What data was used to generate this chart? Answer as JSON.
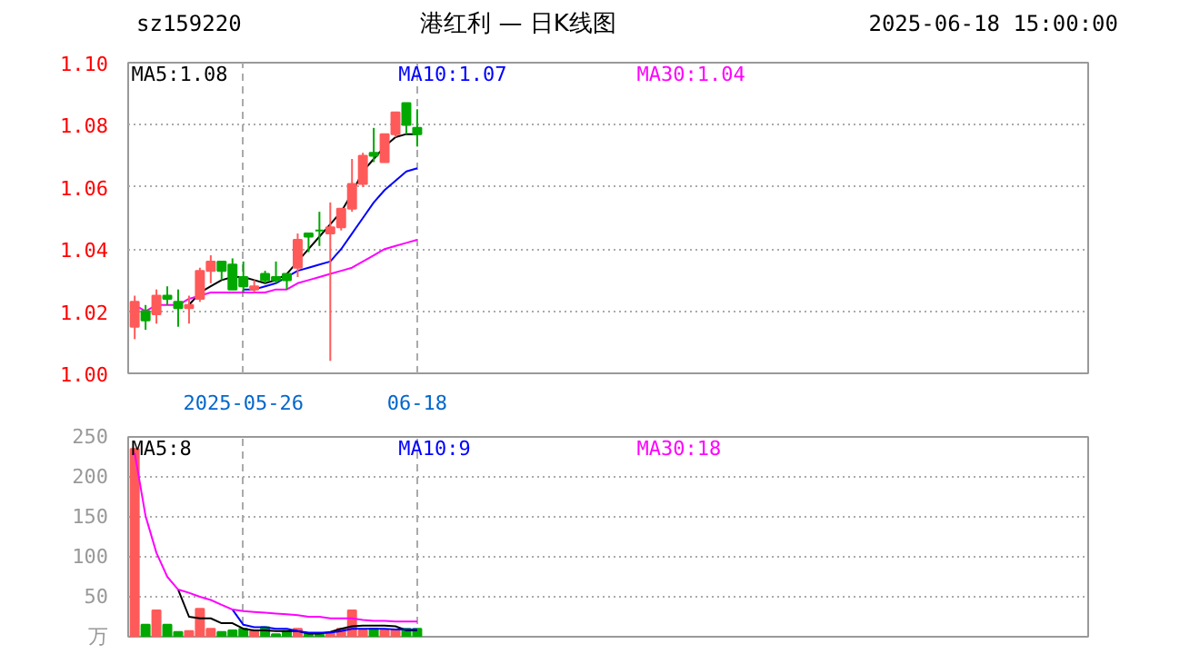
{
  "chart_data": [
    {
      "type": "candlestick",
      "title": "港红利 — 日K线图",
      "annotations": [
        "sz159220",
        "2025-06-18 15:00:00"
      ],
      "categories": [
        null,
        null,
        null,
        null,
        null,
        null,
        null,
        null,
        null,
        null,
        "2025-05-26",
        null,
        null,
        null,
        null,
        null,
        null,
        null,
        null,
        null,
        null,
        null,
        null,
        null,
        null,
        null,
        "06-18"
      ],
      "ohlc": [
        [
          1.015,
          1.025,
          1.011,
          1.023
        ],
        [
          1.02,
          1.022,
          1.014,
          1.017
        ],
        [
          1.019,
          1.027,
          1.016,
          1.025
        ],
        [
          1.025,
          1.028,
          1.022,
          1.024
        ],
        [
          1.023,
          1.027,
          1.015,
          1.021
        ],
        [
          1.021,
          1.025,
          1.016,
          1.022
        ],
        [
          1.024,
          1.034,
          1.023,
          1.033
        ],
        [
          1.033,
          1.038,
          1.029,
          1.036
        ],
        [
          1.036,
          1.036,
          1.03,
          1.033
        ],
        [
          1.035,
          1.037,
          1.027,
          1.027
        ],
        [
          1.031,
          1.036,
          1.026,
          1.028
        ],
        [
          1.027,
          1.03,
          1.026,
          1.028
        ],
        [
          1.032,
          1.033,
          1.029,
          1.03
        ],
        [
          1.031,
          1.036,
          1.029,
          1.03
        ],
        [
          1.032,
          1.032,
          1.027,
          1.03
        ],
        [
          1.034,
          1.045,
          1.031,
          1.043
        ],
        [
          1.045,
          1.045,
          1.039,
          1.044
        ],
        [
          1.046,
          1.052,
          1.041,
          1.046
        ],
        [
          1.045,
          1.055,
          1.004,
          1.047
        ],
        [
          1.047,
          1.053,
          1.046,
          1.053
        ],
        [
          1.053,
          1.069,
          1.052,
          1.061
        ],
        [
          1.061,
          1.071,
          1.06,
          1.07
        ],
        [
          1.071,
          1.079,
          1.068,
          1.07
        ],
        [
          1.068,
          1.077,
          1.068,
          1.077
        ],
        [
          1.077,
          1.084,
          1.076,
          1.084
        ],
        [
          1.087,
          1.087,
          1.077,
          1.08
        ],
        [
          1.079,
          1.085,
          1.073,
          1.077
        ]
      ],
      "colors": [
        "#ff5a5a",
        "#00a800",
        "#ff5a5a",
        "#00a800",
        "#00a800",
        "#ff5a5a",
        "#ff5a5a",
        "#ff5a5a",
        "#00a800",
        "#00a800",
        "#00a800",
        "#ff5a5a",
        "#00a800",
        "#00a800",
        "#00a800",
        "#ff5a5a",
        "#00a800",
        "#00a800",
        "#ff5a5a",
        "#ff5a5a",
        "#ff5a5a",
        "#ff5a5a",
        "#00a800",
        "#ff5a5a",
        "#ff5a5a",
        "#00a800",
        "#00a800"
      ],
      "series": [
        {
          "type": "line",
          "name": "MA5:1.08",
          "color": "#000000",
          "values": [
            null,
            null,
            null,
            null,
            null,
            1.022,
            1.026,
            1.028,
            1.03,
            1.031,
            1.031,
            1.03,
            1.029,
            1.03,
            1.032,
            1.036,
            1.04,
            1.044,
            1.048,
            1.052,
            1.058,
            1.065,
            1.069,
            1.073,
            1.076,
            1.077,
            1.077
          ]
        },
        {
          "type": "line",
          "name": "MA10:1.07",
          "color": "#0000ff",
          "values": [
            null,
            null,
            null,
            null,
            null,
            null,
            null,
            null,
            null,
            null,
            1.027,
            1.027,
            1.028,
            1.029,
            1.031,
            1.033,
            1.034,
            1.035,
            1.036,
            1.04,
            1.045,
            1.05,
            1.055,
            1.059,
            1.062,
            1.065,
            1.066
          ]
        },
        {
          "type": "line",
          "name": "MA30:1.04",
          "color": "#ff00ff",
          "values": [
            1.022,
            1.02,
            1.022,
            1.022,
            1.022,
            1.024,
            1.025,
            1.026,
            1.026,
            1.026,
            1.026,
            1.026,
            1.026,
            1.027,
            1.027,
            1.029,
            1.03,
            1.031,
            1.032,
            1.033,
            1.034,
            1.036,
            1.038,
            1.04,
            1.041,
            1.042,
            1.043
          ]
        }
      ],
      "ylim": [
        1.0,
        1.1
      ],
      "yticks": [
        {
          "value": 1.0,
          "label": "1.00"
        },
        {
          "value": 1.02,
          "label": "1.02"
        },
        {
          "value": 1.04,
          "label": "1.04"
        },
        {
          "value": 1.06,
          "label": "1.06"
        },
        {
          "value": 1.08,
          "label": "1.08"
        },
        {
          "value": 1.1,
          "label": "1.10"
        }
      ],
      "grid": true,
      "legend": "top"
    },
    {
      "type": "bar",
      "categories": [
        null,
        null,
        null,
        null,
        null,
        null,
        null,
        null,
        null,
        null,
        null,
        null,
        null,
        null,
        null,
        null,
        null,
        null,
        null,
        null,
        null,
        null,
        null,
        null,
        null,
        null,
        null
      ],
      "values": [
        235,
        15,
        33,
        15,
        6,
        7,
        35,
        10,
        6,
        8,
        10,
        7,
        12,
        3,
        7,
        10,
        4,
        3,
        4,
        10,
        33,
        8,
        10,
        8,
        8,
        10,
        10
      ],
      "colors": [
        "#ff5a5a",
        "#00a800",
        "#ff5a5a",
        "#00a800",
        "#00a800",
        "#ff5a5a",
        "#ff5a5a",
        "#ff5a5a",
        "#00a800",
        "#00a800",
        "#00a800",
        "#ff5a5a",
        "#00a800",
        "#00a800",
        "#00a800",
        "#ff5a5a",
        "#00a800",
        "#00a800",
        "#ff5a5a",
        "#ff5a5a",
        "#ff5a5a",
        "#ff5a5a",
        "#00a800",
        "#ff5a5a",
        "#ff5a5a",
        "#00a800",
        "#00a800"
      ],
      "series": [
        {
          "type": "line",
          "name": "MA5:8",
          "color": "#000000",
          "values": [
            null,
            null,
            null,
            null,
            59,
            25,
            23,
            23,
            17,
            17,
            10,
            8,
            8,
            7,
            7,
            7,
            4,
            4,
            6,
            10,
            13,
            14,
            14,
            14,
            13,
            8,
            8
          ]
        },
        {
          "type": "line",
          "name": "MA10:9",
          "color": "#0000ff",
          "values": [
            null,
            null,
            null,
            null,
            null,
            null,
            null,
            null,
            null,
            34,
            15,
            12,
            12,
            10,
            10,
            7,
            5,
            5,
            5,
            7,
            10,
            10,
            10,
            10,
            9,
            9,
            9
          ]
        },
        {
          "type": "line",
          "name": "MA30:18",
          "color": "#ff00ff",
          "values": [
            230,
            151,
            105,
            75,
            59,
            55,
            50,
            46,
            40,
            34,
            32,
            31,
            30,
            29,
            28,
            27,
            25,
            25,
            23,
            23,
            23,
            21,
            20,
            20,
            19,
            19,
            19
          ]
        }
      ],
      "ylim": [
        0,
        250
      ],
      "yticks": [
        {
          "value": 0,
          "label": "万"
        },
        50,
        100,
        150,
        200,
        250
      ],
      "grid": true,
      "legend": "top",
      "tick_labels": "y"
    }
  ]
}
